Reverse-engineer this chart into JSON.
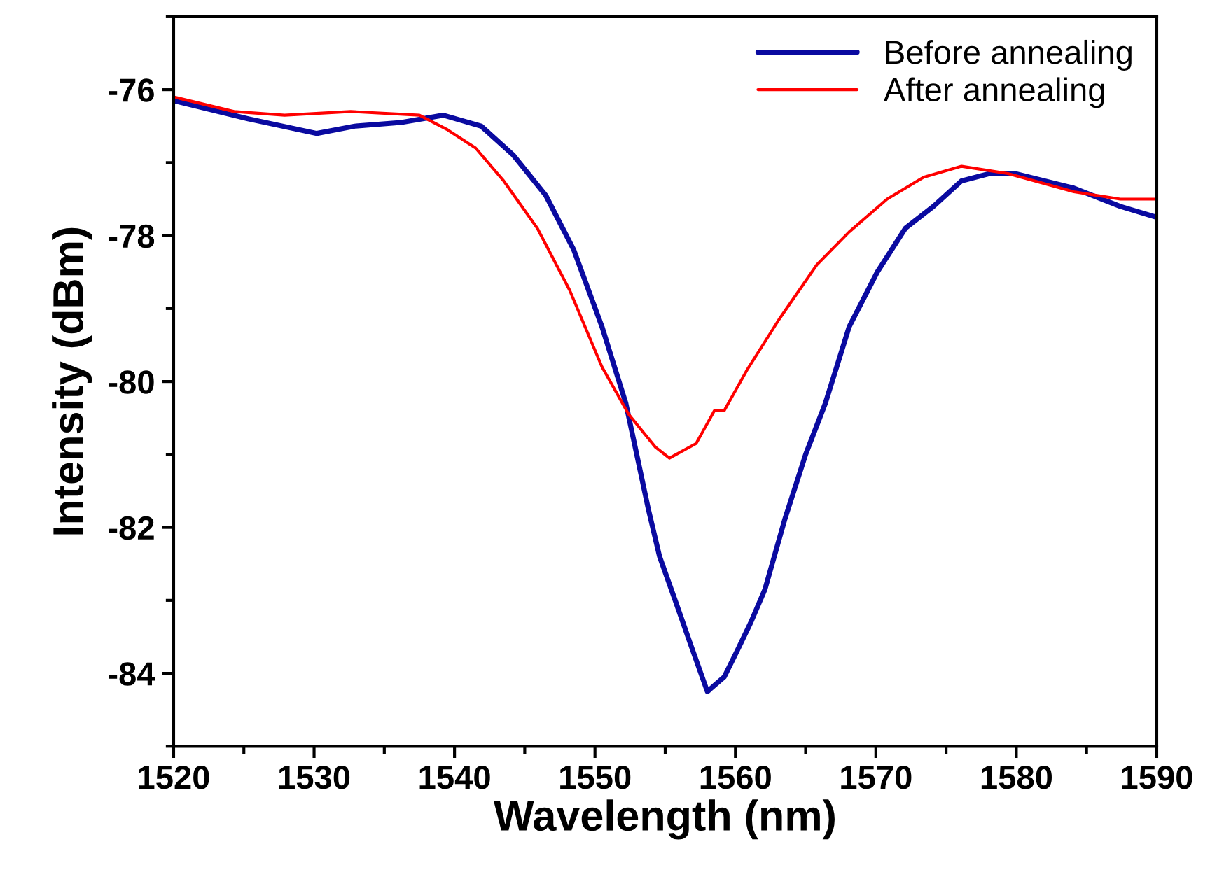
{
  "chart_data": {
    "type": "line",
    "xlabel": "Wavelength (nm)",
    "ylabel": "Intensity (dBm)",
    "xlim": [
      1520,
      1590
    ],
    "ylim": [
      -85,
      -75
    ],
    "xticks": [
      1520,
      1530,
      1540,
      1550,
      1560,
      1570,
      1580,
      1590
    ],
    "yticks": [
      -84,
      -82,
      -80,
      -78,
      -76
    ],
    "grid": false,
    "legend": "top right",
    "marker": "none",
    "line_style": "solid",
    "series": [
      {
        "name": "Before annealing",
        "color": "#0a0aa0",
        "x": [
          1520,
          1525.3,
          1530.2,
          1532.9,
          1536.2,
          1539.2,
          1541.9,
          1544.2,
          1546.5,
          1548.5,
          1550.5,
          1552.2,
          1553.8,
          1554.6,
          1555.8,
          1556.8,
          1558.0,
          1559.2,
          1560.1,
          1561.1,
          1562.1,
          1563.5,
          1565.0,
          1566.4,
          1568.1,
          1570.1,
          1572.1,
          1574.1,
          1576.1,
          1578.1,
          1579.9,
          1584.1,
          1587.4,
          1590
        ],
        "values": [
          -76.15,
          -76.4,
          -76.6,
          -76.5,
          -76.45,
          -76.35,
          -76.5,
          -76.9,
          -77.45,
          -78.2,
          -79.25,
          -80.3,
          -81.75,
          -82.4,
          -83.05,
          -83.6,
          -84.25,
          -84.05,
          -83.7,
          -83.3,
          -82.85,
          -81.9,
          -81.0,
          -80.3,
          -79.25,
          -78.5,
          -77.9,
          -77.6,
          -77.25,
          -77.15,
          -77.15,
          -77.35,
          -77.6,
          -77.75
        ]
      },
      {
        "name": "After annealing",
        "color": "#ff0000",
        "x": [
          1520,
          1524.3,
          1527.9,
          1532.6,
          1537.5,
          1539.5,
          1541.5,
          1543.5,
          1545.9,
          1548.2,
          1550.5,
          1552.4,
          1554.3,
          1555.3,
          1557.2,
          1558.5,
          1559.2,
          1560.8,
          1563.1,
          1565.8,
          1568.1,
          1570.8,
          1573.4,
          1576.1,
          1579.4,
          1584.1,
          1587.4,
          1590
        ],
        "values": [
          -76.1,
          -76.3,
          -76.35,
          -76.3,
          -76.35,
          -76.55,
          -76.8,
          -77.25,
          -77.9,
          -78.75,
          -79.8,
          -80.45,
          -80.9,
          -81.05,
          -80.85,
          -80.4,
          -80.4,
          -79.85,
          -79.15,
          -78.4,
          -77.95,
          -77.5,
          -77.2,
          -77.05,
          -77.15,
          -77.4,
          -77.5,
          -77.5
        ]
      }
    ]
  }
}
